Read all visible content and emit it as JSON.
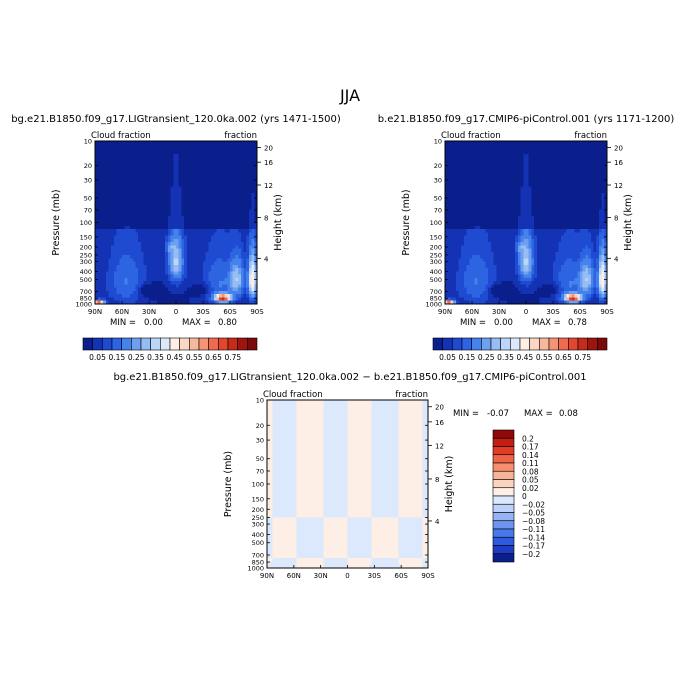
{
  "season": "JJA",
  "colors": {
    "seq": [
      "#0a1f8c",
      "#1432b4",
      "#1e4bd2",
      "#2d64e1",
      "#4682eb",
      "#6ea0f0",
      "#96bef5",
      "#bcd6fa",
      "#dbe9fb",
      "#fdeee6",
      "#fbd6c4",
      "#f8b89d",
      "#f59475",
      "#ef6a4f",
      "#e2462e",
      "#c62b1c",
      "#9e1510",
      "#7a0a0a"
    ],
    "div": [
      "#0a1f8c",
      "#1e3cc8",
      "#2d5ae0",
      "#4678eb",
      "#6e96f0",
      "#96b4f5",
      "#bcd2fa",
      "#dce8fb",
      "#fdeee6",
      "#fbd4c0",
      "#f8b496",
      "#f5906e",
      "#ef6446",
      "#e03c26",
      "#c21e12",
      "#8c0a08"
    ]
  },
  "chart_data": [
    {
      "id": "case",
      "type": "heatmap",
      "title": "bg.e21.B1850.f09_g17.LIGtransient_120.0ka.002 (yrs 1471-1500)",
      "left_label": "Cloud fraction",
      "right_label": "fraction",
      "ylabel": "Pressure (mb)",
      "ylabel_right": "Height (km)",
      "x_ticks": [
        "90N",
        "60N",
        "30N",
        "0",
        "30S",
        "60S",
        "90S"
      ],
      "y_ticks": [
        "10",
        "20",
        "30",
        "50",
        "70",
        "100",
        "150",
        "200",
        "250",
        "300",
        "400",
        "500",
        "700",
        "850",
        "1000"
      ],
      "y_ticks_right": [
        "20",
        "16",
        "12",
        "8",
        "4"
      ],
      "min_label": "MIN =",
      "min_value": "0.00",
      "max_label": "MAX =",
      "max_value": "0.80",
      "colorbar_labels": [
        "0.05",
        "0.15",
        "0.25",
        "0.35",
        "0.45",
        "0.55",
        "0.65",
        "0.75"
      ]
    },
    {
      "id": "control",
      "type": "heatmap",
      "title": "b.e21.B1850.f09_g17.CMIP6-piControl.001 (yrs 1171-1200)",
      "left_label": "Cloud fraction",
      "right_label": "fraction",
      "ylabel": "Pressure (mb)",
      "ylabel_right": "Height (km)",
      "x_ticks": [
        "90N",
        "60N",
        "30N",
        "0",
        "30S",
        "60S",
        "90S"
      ],
      "y_ticks": [
        "10",
        "20",
        "30",
        "50",
        "70",
        "100",
        "150",
        "200",
        "250",
        "300",
        "400",
        "500",
        "700",
        "850",
        "1000"
      ],
      "y_ticks_right": [
        "20",
        "16",
        "12",
        "8",
        "4"
      ],
      "min_label": "MIN =",
      "min_value": "0.00",
      "max_label": "MAX =",
      "max_value": "0.78",
      "colorbar_labels": [
        "0.05",
        "0.15",
        "0.25",
        "0.35",
        "0.45",
        "0.55",
        "0.65",
        "0.75"
      ]
    },
    {
      "id": "diff",
      "type": "heatmap",
      "title": "bg.e21.B1850.f09_g17.LIGtransient_120.0ka.002 − b.e21.B1850.f09_g17.CMIP6-piControl.001",
      "left_label": "Cloud fraction",
      "right_label": "fraction",
      "ylabel": "Pressure (mb)",
      "ylabel_right": "Height (km)",
      "x_ticks": [
        "90N",
        "60N",
        "30N",
        "0",
        "30S",
        "60S",
        "90S"
      ],
      "y_ticks": [
        "10",
        "20",
        "30",
        "50",
        "70",
        "100",
        "150",
        "200",
        "250",
        "300",
        "400",
        "500",
        "700",
        "850",
        "1000"
      ],
      "y_ticks_right": [
        "20",
        "16",
        "12",
        "8",
        "4"
      ],
      "min_label": "MIN =",
      "min_value": "-0.07",
      "max_label": "MAX =",
      "max_value": "0.08",
      "colorbar_labels": [
        "0.2",
        "0.17",
        "0.14",
        "0.11",
        "0.08",
        "0.05",
        "0.02",
        "0",
        "−0.02",
        "−0.05",
        "−0.08",
        "−0.11",
        "−0.14",
        "−0.17",
        "−0.2"
      ]
    }
  ]
}
